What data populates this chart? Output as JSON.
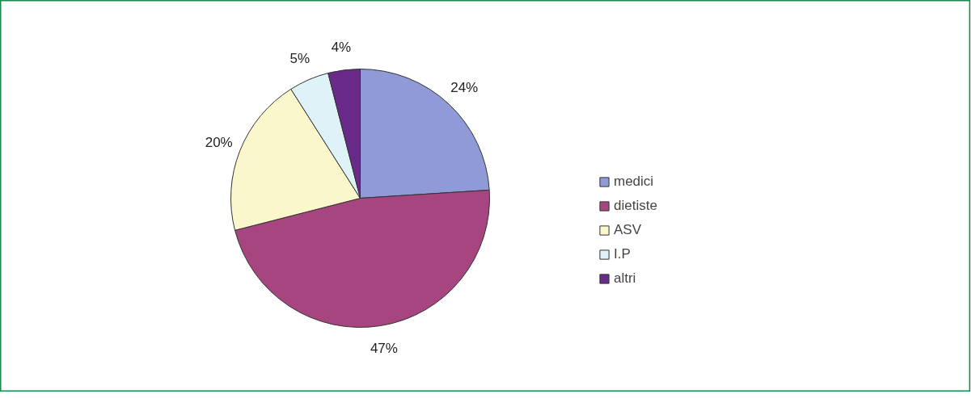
{
  "chart_data": {
    "type": "pie",
    "categories": [
      "medici",
      "dietiste",
      "ASV",
      "I.P",
      "altri"
    ],
    "values": [
      24,
      47,
      20,
      5,
      4
    ],
    "value_labels": [
      "24%",
      "47%",
      "20%",
      "5%",
      "4%"
    ],
    "colors": [
      "#8f9ad6",
      "#a6457f",
      "#fbf7cc",
      "#def2f7",
      "#6a2a8a"
    ],
    "legend": "right"
  }
}
